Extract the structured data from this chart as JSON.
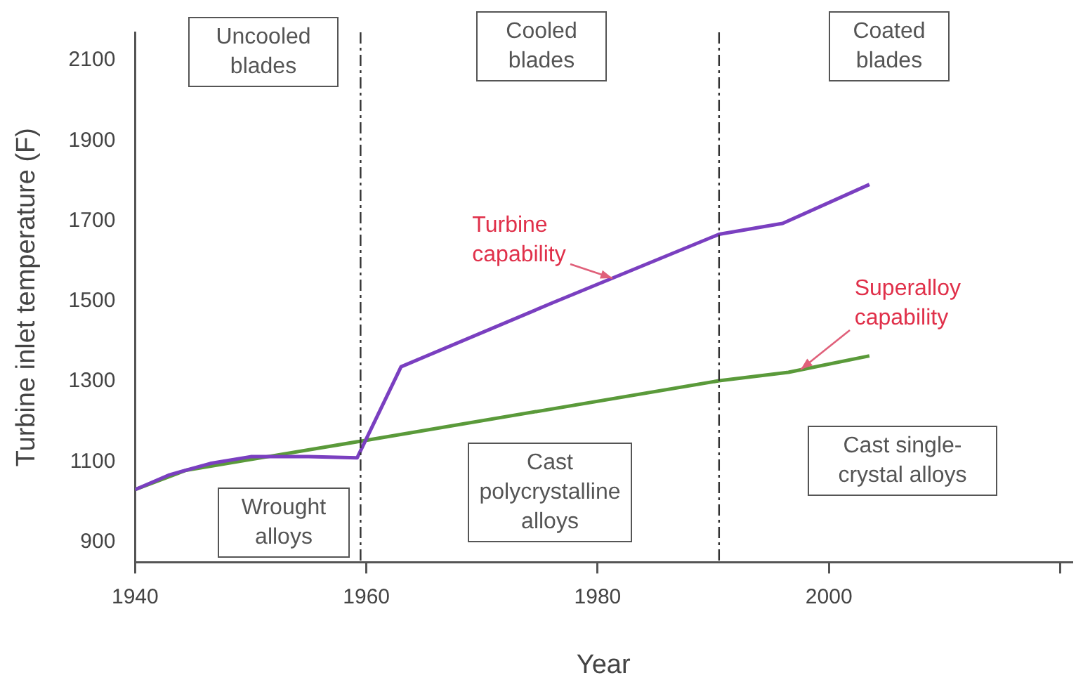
{
  "chart_data": {
    "type": "line",
    "xlabel": "Year",
    "ylabel": "Turbine inlet temperature (F)",
    "xlim": [
      1940,
      2021
    ],
    "xticks": [
      1940,
      1960,
      1980,
      2000,
      {
        "value": 2020,
        "label": null
      }
    ],
    "ylim": [
      850,
      2170
    ],
    "yticks": [
      900,
      1100,
      1300,
      1500,
      1700,
      1900,
      2100
    ],
    "grid": false,
    "legend": false,
    "marker": "none",
    "line_style": "solid",
    "series": [
      {
        "color": "#7a3fc0",
        "x": [
          1940,
          1943,
          1946.5,
          1950,
          1955,
          1959.2,
          1963,
          1976,
          1990.5,
          1996,
          2003.5
        ],
        "values": [
          1031,
          1068,
          1096,
          1113,
          1113,
          1110,
          1337,
          1495,
          1667,
          1694,
          1791
        ]
      },
      {
        "color": "#5a9a3a",
        "x": [
          1940,
          1944.4,
          1950,
          1960,
          1990.5,
          1996.5,
          2003.5
        ],
        "values": [
          1031,
          1079,
          1106,
          1154,
          1302,
          1323,
          1364
        ]
      }
    ],
    "ref_lines": [
      {
        "axis": "x",
        "value": 1959.5,
        "line_style": "dashed",
        "color": "#333333"
      },
      {
        "axis": "x",
        "value": 1990.5,
        "line_style": "dashed",
        "color": "#333333"
      }
    ],
    "annotations": [
      "Uncooled blades",
      "Cooled blades",
      "Coated blades",
      "Wrought alloys",
      "Cast polycrystalline alloys",
      "Cast single-crystal alloys",
      {
        "text": "Turbine capability",
        "x": 1981.3,
        "y": 1558
      },
      {
        "text": "Superalloy capability",
        "x": 1997.6,
        "y": 1329
      }
    ]
  }
}
